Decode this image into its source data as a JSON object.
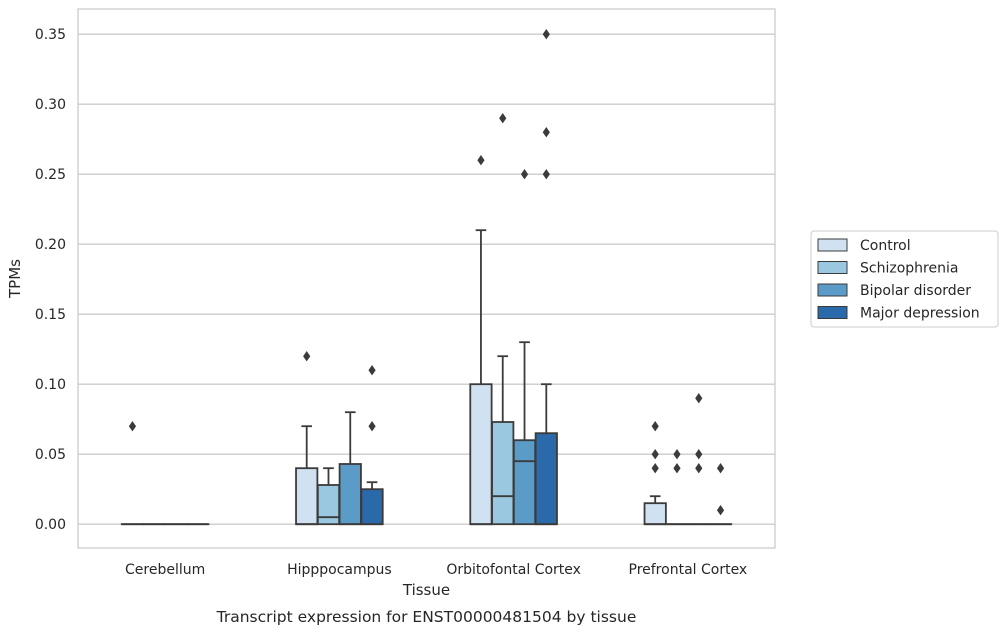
{
  "chart_data": {
    "type": "boxplot",
    "caption": "Transcript expression for ENST00000481504 by tissue",
    "xlabel": "Tissue",
    "ylabel": "TPMs",
    "ylim": [
      -0.017,
      0.368
    ],
    "yticks": [
      0.0,
      0.05,
      0.1,
      0.15,
      0.2,
      0.25,
      0.3,
      0.35
    ],
    "ytick_labels": [
      "0.00",
      "0.05",
      "0.10",
      "0.15",
      "0.20",
      "0.25",
      "0.30",
      "0.35"
    ],
    "grid": "horizontal",
    "legend_position": "right",
    "categories": [
      "Cerebellum",
      "Hipppocampus",
      "Orbitofontal Cortex",
      "Prefrontal Cortex"
    ],
    "series": [
      {
        "name": "Control",
        "color": "#d0e2f2",
        "boxes": [
          {
            "min": 0,
            "q1": 0,
            "median": 0,
            "q3": 0,
            "max": 0,
            "outliers": [
              0.07
            ]
          },
          {
            "min": 0,
            "q1": 0,
            "median": 0,
            "q3": 0.04,
            "max": 0.07,
            "outliers": [
              0.12
            ]
          },
          {
            "min": 0,
            "q1": 0,
            "median": 0,
            "q3": 0.1,
            "max": 0.21,
            "outliers": [
              0.26
            ]
          },
          {
            "min": 0,
            "q1": 0,
            "median": 0,
            "q3": 0.015,
            "max": 0.02,
            "outliers": [
              0.04,
              0.05,
              0.07
            ]
          }
        ]
      },
      {
        "name": "Schizophrenia",
        "color": "#9ac8e0",
        "boxes": [
          {
            "min": 0,
            "q1": 0,
            "median": 0,
            "q3": 0,
            "max": 0,
            "outliers": []
          },
          {
            "min": 0,
            "q1": 0,
            "median": 0.005,
            "q3": 0.028,
            "max": 0.04,
            "outliers": []
          },
          {
            "min": 0,
            "q1": 0,
            "median": 0.02,
            "q3": 0.073,
            "max": 0.12,
            "outliers": [
              0.29
            ]
          },
          {
            "min": 0,
            "q1": 0,
            "median": 0,
            "q3": 0,
            "max": 0,
            "outliers": [
              0.04,
              0.05
            ]
          }
        ]
      },
      {
        "name": "Bipolar disorder",
        "color": "#5a9bc8",
        "boxes": [
          {
            "min": 0,
            "q1": 0,
            "median": 0,
            "q3": 0,
            "max": 0,
            "outliers": []
          },
          {
            "min": 0,
            "q1": 0,
            "median": 0,
            "q3": 0.043,
            "max": 0.08,
            "outliers": []
          },
          {
            "min": 0,
            "q1": 0,
            "median": 0.045,
            "q3": 0.06,
            "max": 0.13,
            "outliers": [
              0.25
            ]
          },
          {
            "min": 0,
            "q1": 0,
            "median": 0,
            "q3": 0,
            "max": 0,
            "outliers": [
              0.04,
              0.05,
              0.09
            ]
          }
        ]
      },
      {
        "name": "Major depression",
        "color": "#2a6aab",
        "boxes": [
          {
            "min": 0,
            "q1": 0,
            "median": 0,
            "q3": 0,
            "max": 0,
            "outliers": []
          },
          {
            "min": 0,
            "q1": 0,
            "median": 0,
            "q3": 0.025,
            "max": 0.03,
            "outliers": [
              0.07,
              0.11
            ]
          },
          {
            "min": 0,
            "q1": 0,
            "median": 0,
            "q3": 0.065,
            "max": 0.1,
            "outliers": [
              0.25,
              0.28,
              0.35
            ]
          },
          {
            "min": 0,
            "q1": 0,
            "median": 0,
            "q3": 0,
            "max": 0,
            "outliers": [
              0.01,
              0.04
            ]
          }
        ]
      }
    ]
  }
}
